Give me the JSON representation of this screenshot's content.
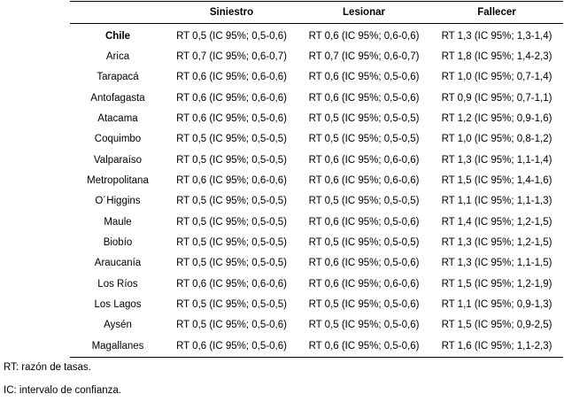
{
  "table": {
    "headers": [
      "",
      "Siniestro",
      "Lesionar",
      "Fallecer"
    ],
    "rows": [
      [
        "Chile",
        "RT 0,5 (IC 95%; 0,5-0,6)",
        "RT 0,6 (IC 95%; 0,6-0,6)",
        "RT 1,3 (IC 95%; 1,3-1,4)"
      ],
      [
        "Arica",
        "RT 0,7 (IC 95%; 0,6-0,7)",
        "RT 0,7 (IC 95%; 0,6-0,7)",
        "RT 1,8 (IC 95%; 1,4-2,3)"
      ],
      [
        "Tarapacá",
        "RT 0,6 (IC 95%; 0,6-0,6)",
        "RT 0,6 (IC 95%; 0,5-0,6)",
        "RT 1,0 (IC 95%; 0,7-1,4)"
      ],
      [
        "Antofagasta",
        "RT 0,6 (IC 95%; 0,6-0,6)",
        "RT 0,6 (IC 95%; 0,5-0,6)",
        "RT 0,9 (IC 95%; 0,7-1,1)"
      ],
      [
        "Atacama",
        "RT 0,6 (IC 95%; 0,5-0,6)",
        "RT 0,5 (IC 95%; 0,5-0,5)",
        "RT 1,2 (IC 95%; 0,9-1,6)"
      ],
      [
        "Coquimbo",
        "RT 0,5 (IC 95%; 0,5-0,5)",
        "RT 0,5 (IC 95%; 0,5-0,5)",
        "RT 1,0 (IC 95%; 0,8-1,2)"
      ],
      [
        "Valparaíso",
        "RT 0,5 (IC 95%; 0,5-0,5)",
        "RT 0,6 (IC 95%; 0,6-0,6)",
        "RT 1,3 (IC 95%; 1,1-1,4)"
      ],
      [
        "Metropolitana",
        "RT 0,6 (IC 95%; 0,6-0,6)",
        "RT 0,6 (IC 95%; 0,6-0,6)",
        "RT 1,5 (IC 95%; 1,4-1,6)"
      ],
      [
        "O´Higgins",
        "RT 0,5 (IC 95%; 0,5-0,5)",
        "RT 0,5 (IC 95%; 0,5-0,5)",
        "RT 1,1 (IC 95%; 1,1-1,3)"
      ],
      [
        "Maule",
        "RT 0,5 (IC 95%; 0,5-0,5)",
        "RT 0,6 (IC 95%; 0,5-0,6)",
        "RT 1,4 (IC 95%; 1,2-1,5)"
      ],
      [
        "Biobío",
        "RT 0,5 (IC 95%; 0,5-0,5)",
        "RT 0,5 (IC 95%; 0,5-0,5)",
        "RT 1,3 (IC 95%; 1,2-1,5)"
      ],
      [
        "Araucanía",
        "RT 0,5 (IC 95%; 0,5-0,5)",
        "RT 0,6 (IC 95%; 0,5-0,6)",
        "RT 1,3 (IC 95%; 1,1-1,5)"
      ],
      [
        "Los Ríos",
        "RT 0,6 (IC 95%; 0,6-0,6)",
        "RT 0,6 (IC 95%; 0,6-0,6)",
        "RT 1,5 (IC 95%; 1,2-1,9)"
      ],
      [
        "Los Lagos",
        "RT 0,5 (IC 95%; 0,5-0,5)",
        "RT 0,5 (IC 95%; 0,5-0,6)",
        "RT 1,1 (IC 95%; 0,9-1,3)"
      ],
      [
        "Aysén",
        "RT 0,5 (IC 95%; 0,5-0,6)",
        "RT 0,5 (IC 95%; 0,5-0,6)",
        "RT 1,5 (IC 95%; 0,9-2,5)"
      ],
      [
        "Magallanes",
        "RT 0,6 (IC 95%; 0,5-0,6)",
        "RT 0,6 (IC 95%; 0,5-0,6)",
        "RT 1,6 (IC 95%; 1,1-2,3)"
      ]
    ]
  },
  "notes": {
    "rt": "RT: razón de tasas.",
    "ic": "IC: intervalo de confianza."
  }
}
